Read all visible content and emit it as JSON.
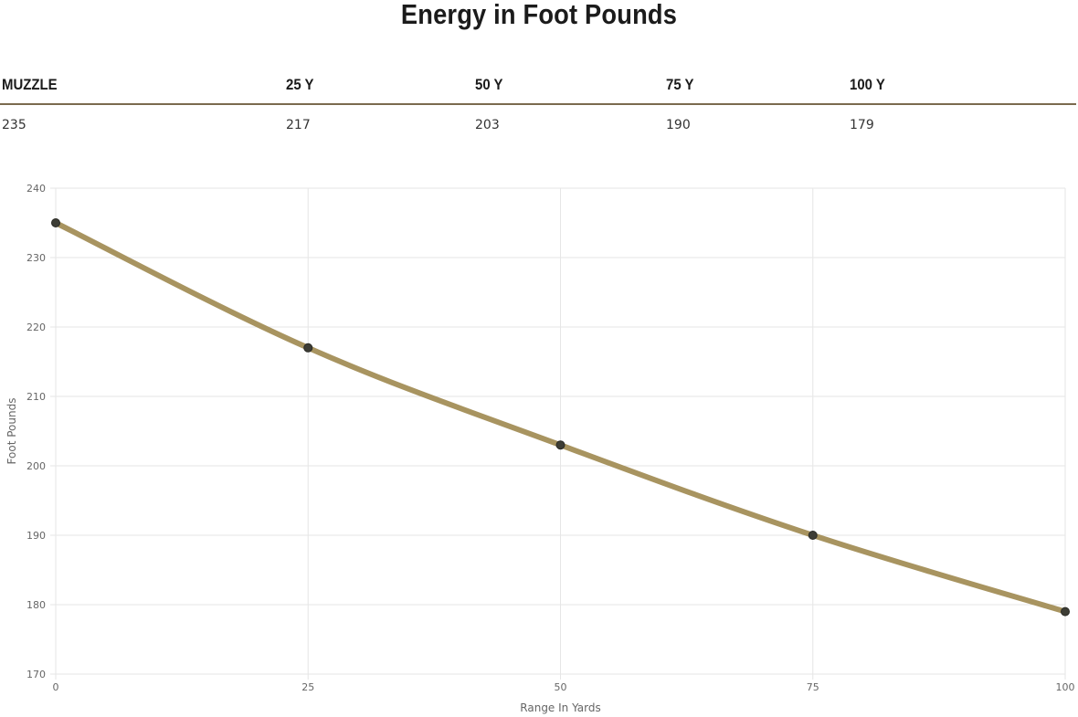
{
  "table": {
    "headers": [
      "MUZZLE",
      "25 Y",
      "50 Y",
      "75 Y",
      "100 Y"
    ],
    "values": [
      "235",
      "217",
      "203",
      "190",
      "179"
    ]
  },
  "colors": {
    "line": "#a89460",
    "point": "#3d3d35",
    "grid": "#e6e6e6",
    "rule": "#7a6a4e"
  },
  "chart_data": {
    "type": "line",
    "title": "Energy in Foot Pounds",
    "xlabel": "Range In Yards",
    "ylabel": "Foot Pounds",
    "x": [
      0,
      25,
      50,
      75,
      100
    ],
    "series": [
      {
        "values": [
          235,
          217,
          203,
          190,
          179
        ]
      }
    ],
    "xlim": [
      0,
      100
    ],
    "ylim": [
      170,
      240
    ],
    "xticks": [
      0,
      25,
      50,
      75,
      100
    ],
    "yticks": [
      170,
      180,
      190,
      200,
      210,
      220,
      230,
      240
    ],
    "grid": true,
    "legend": "none"
  }
}
